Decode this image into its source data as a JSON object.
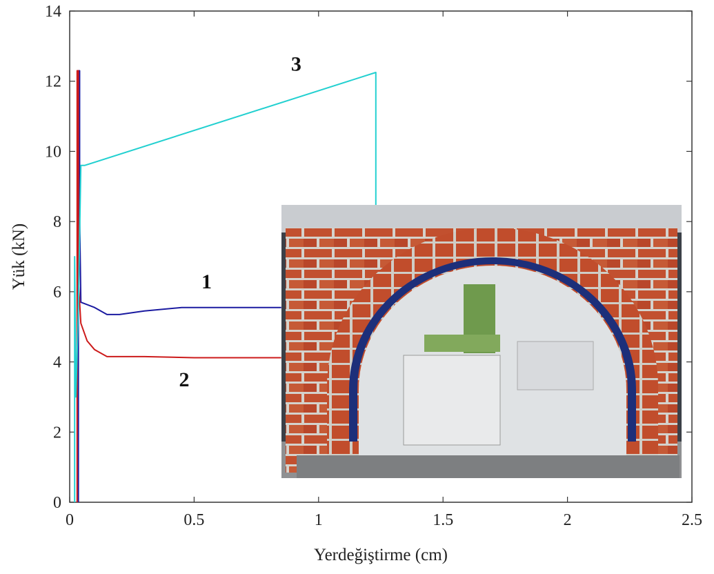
{
  "chart_data": {
    "type": "line",
    "title": "",
    "xlabel": "Yerdeğiştirme (cm)",
    "ylabel": "Yük (kN)",
    "xlim": [
      0,
      2.5
    ],
    "ylim": [
      0,
      14
    ],
    "xticks": [
      "0",
      "0.5",
      "1",
      "1.5",
      "2",
      "2.5"
    ],
    "yticks": [
      "0",
      "2",
      "4",
      "6",
      "8",
      "10",
      "12",
      "14"
    ],
    "grid": false,
    "legend": "none",
    "series": [
      {
        "label": "1",
        "color": "#1a1aa0",
        "points": [
          [
            0.035,
            0
          ],
          [
            0.035,
            12.3
          ],
          [
            0.04,
            12.3
          ],
          [
            0.04,
            8.2
          ],
          [
            0.045,
            5.7
          ],
          [
            0.1,
            5.55
          ],
          [
            0.15,
            5.35
          ],
          [
            0.2,
            5.35
          ],
          [
            0.3,
            5.45
          ],
          [
            0.45,
            5.55
          ],
          [
            0.6,
            5.55
          ],
          [
            0.85,
            5.55
          ]
        ]
      },
      {
        "label": "2",
        "color": "#cc1a1a",
        "points": [
          [
            0.03,
            0
          ],
          [
            0.03,
            12.3
          ],
          [
            0.035,
            12.3
          ],
          [
            0.035,
            6.3
          ],
          [
            0.045,
            5.1
          ],
          [
            0.07,
            4.6
          ],
          [
            0.1,
            4.35
          ],
          [
            0.15,
            4.15
          ],
          [
            0.3,
            4.15
          ],
          [
            0.5,
            4.12
          ],
          [
            0.85,
            4.12
          ]
        ]
      },
      {
        "label": "3",
        "color": "#22d0d0",
        "points": [
          [
            0.02,
            0
          ],
          [
            0.02,
            7.0
          ],
          [
            0.025,
            3.0
          ],
          [
            0.035,
            5.5
          ],
          [
            0.045,
            9.6
          ],
          [
            0.06,
            9.6
          ],
          [
            1.23,
            12.25
          ],
          [
            1.23,
            8.4
          ]
        ]
      }
    ],
    "annotations": [
      {
        "text": "1",
        "x": 0.55,
        "y": 6.1
      },
      {
        "text": "2",
        "x": 0.46,
        "y": 3.3
      },
      {
        "text": "3",
        "x": 0.91,
        "y": 12.3
      }
    ],
    "inset": {
      "description": "photograph of brick arch test specimen",
      "position": "lower-right"
    }
  }
}
